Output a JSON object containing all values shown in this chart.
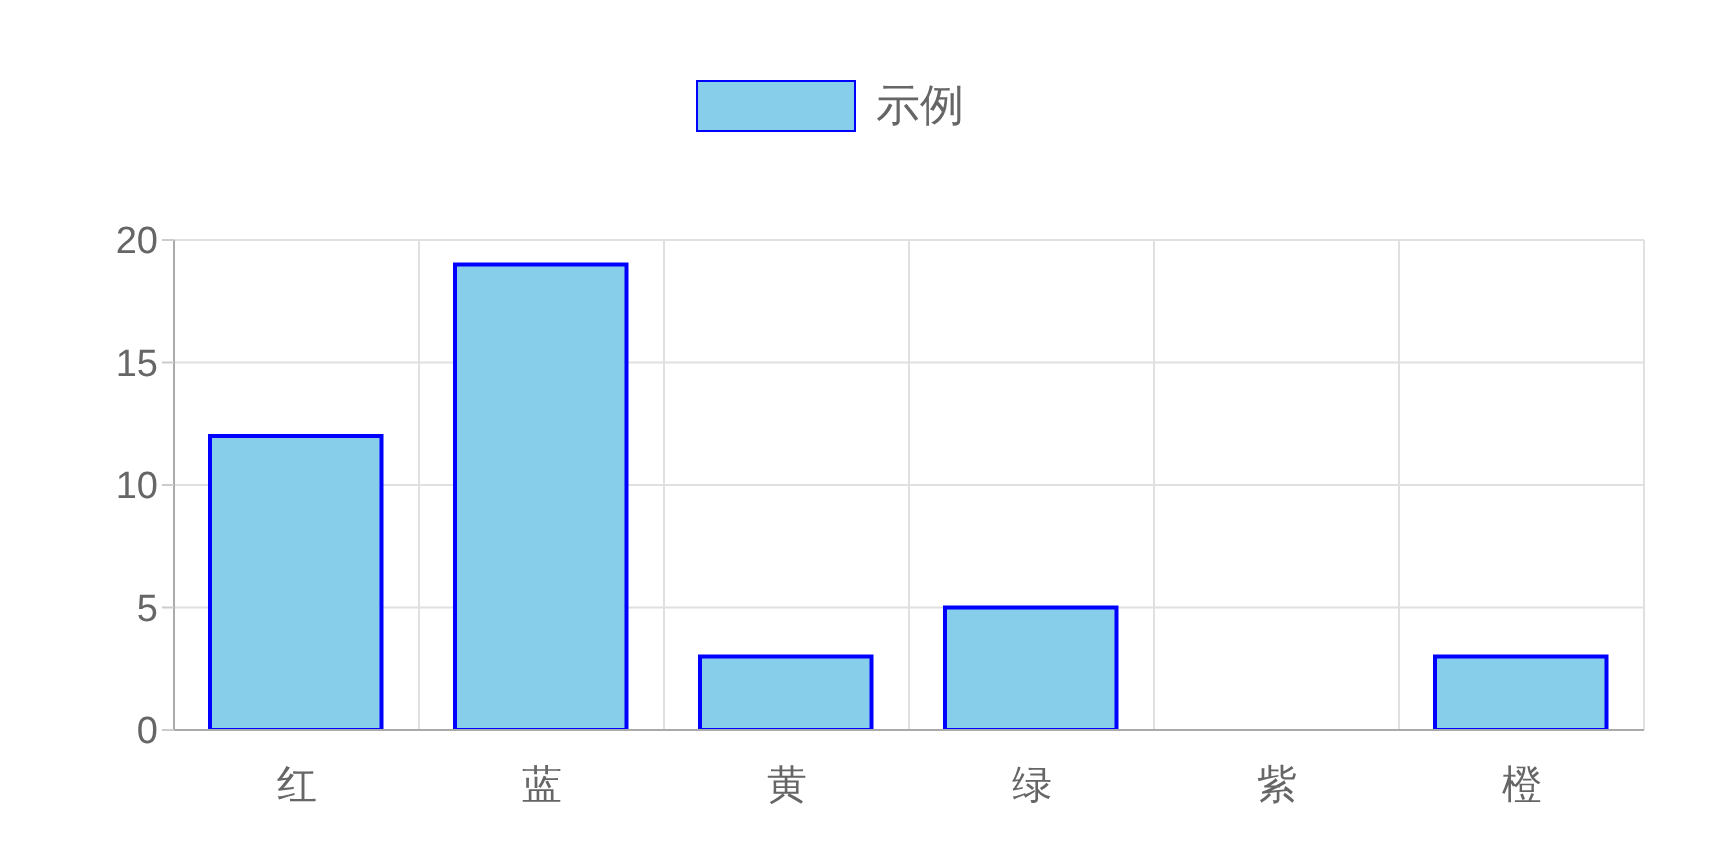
{
  "chart_data": {
    "type": "bar",
    "categories": [
      "红",
      "蓝",
      "黄",
      "绿",
      "紫",
      "橙"
    ],
    "series": [
      {
        "name": "示例",
        "color": "#87ceeb",
        "values": [
          12,
          19,
          3,
          5,
          null,
          3
        ]
      }
    ],
    "ylim": [
      0,
      20
    ],
    "yticks": [
      0,
      5,
      10,
      15,
      20
    ],
    "grid": true,
    "legend": "top"
  }
}
